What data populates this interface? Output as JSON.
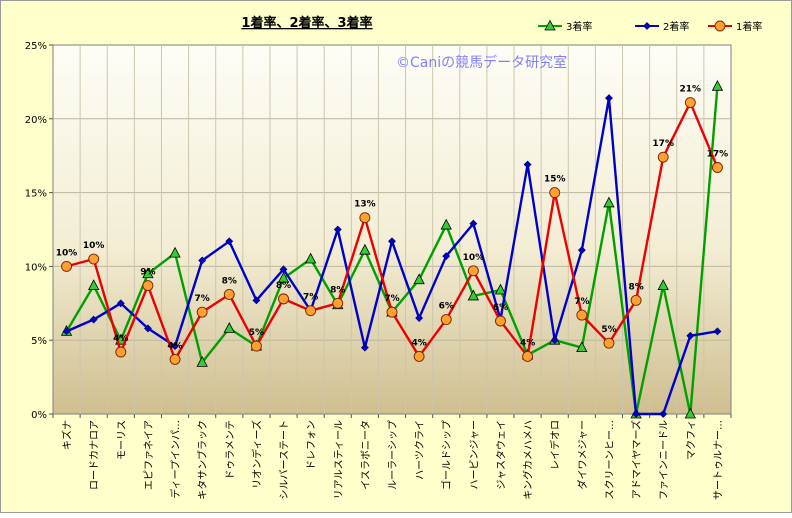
{
  "chart_data": {
    "type": "line",
    "title": "1着率、2着率、3着率",
    "watermark": "©Caniの競馬データ研究室",
    "xlabel": "",
    "ylabel": "",
    "ylim": [
      0,
      25
    ],
    "yticks": [
      "0%",
      "5%",
      "10%",
      "15%",
      "20%",
      "25%"
    ],
    "grid": "horizontal",
    "legend_position": "top-right",
    "categories": [
      "キズナ",
      "ロードカナロア",
      "モーリス",
      "エピファネイア",
      "ディープインパ…",
      "キタサンブラック",
      "ドゥラメンテ",
      "リオンディーズ",
      "シルバーステート",
      "ドレフォン",
      "リアルスティール",
      "イスラボニータ",
      "ルーラーシップ",
      "ハーツクライ",
      "ゴールドシップ",
      "ハービンジャー",
      "ジャスタウェイ",
      "キングカメハメハ",
      "レイデオロ",
      "ダイワメジャー",
      "スクリーンヒー…",
      "アドマイヤマーズ",
      "ファインニードル",
      "マクフィ",
      "サートゥルナー…"
    ],
    "series": [
      {
        "name": "3着率",
        "color": "#00a000",
        "marker": "triangle",
        "marker_fill": "#33cc33",
        "values": [
          5.6,
          8.7,
          5.0,
          9.5,
          10.9,
          3.5,
          5.8,
          4.6,
          9.2,
          10.5,
          7.4,
          11.1,
          6.9,
          9.1,
          12.8,
          8.0,
          8.4,
          4.0,
          5.0,
          4.5,
          14.3,
          0.0,
          8.7,
          0.0,
          22.2
        ]
      },
      {
        "name": "2着率",
        "color": "#0000cc",
        "marker": "diamond",
        "marker_fill": "#0000cc",
        "values": [
          5.6,
          6.4,
          7.5,
          5.8,
          4.6,
          10.4,
          11.7,
          7.7,
          9.8,
          7.0,
          12.5,
          4.5,
          11.7,
          6.5,
          10.7,
          12.9,
          6.4,
          16.9,
          5.0,
          11.1,
          21.4,
          0.0,
          0.0,
          5.3,
          5.6
        ]
      },
      {
        "name": "1着率",
        "color": "#ee0000",
        "marker": "circle",
        "marker_fill": "#ffa030",
        "values": [
          10.0,
          10.5,
          4.2,
          8.7,
          3.7,
          6.9,
          8.1,
          4.6,
          7.8,
          7.0,
          7.5,
          13.3,
          6.9,
          3.9,
          6.4,
          9.7,
          6.3,
          3.9,
          15.0,
          6.7,
          4.8,
          7.7,
          17.4,
          21.1,
          16.7
        ],
        "labels": [
          "10%",
          "10%",
          "4%",
          "9%",
          "4%",
          "7%",
          "8%",
          "5%",
          "8%",
          "7%",
          "8%",
          "13%",
          "7%",
          "4%",
          "6%",
          "10%",
          "6%",
          "4%",
          "15%",
          "7%",
          "5%",
          "8%",
          "17%",
          "21%",
          "17%"
        ]
      }
    ]
  }
}
